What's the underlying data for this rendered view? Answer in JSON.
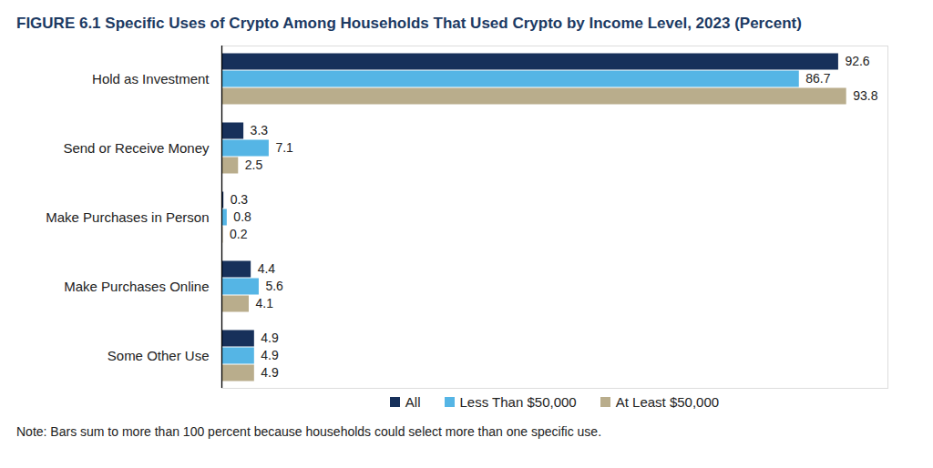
{
  "chart_data": {
    "type": "bar",
    "title": "FIGURE 6.1 Specific Uses of Crypto Among Households That Used Crypto by Income Level, 2023 (Percent)",
    "orientation": "horizontal",
    "categories": [
      "Hold as Investment",
      "Send or Receive Money",
      "Make Purchases in Person",
      "Make Purchases Online",
      "Some Other Use"
    ],
    "series": [
      {
        "name": "All",
        "color": "#17305a",
        "values": [
          92.6,
          3.3,
          0.3,
          4.4,
          4.9
        ]
      },
      {
        "name": "Less Than $50,000",
        "color": "#55b5e5",
        "values": [
          86.7,
          7.1,
          0.8,
          5.6,
          4.9
        ]
      },
      {
        "name": "At Least $50,000",
        "color": "#b9ad8c",
        "values": [
          93.8,
          2.5,
          0.2,
          4.1,
          4.9
        ]
      }
    ],
    "xlim": [
      0,
      100
    ],
    "data_labels": true,
    "tick_labels": "y",
    "legend": "bottom",
    "grid": false,
    "note": "Note: Bars sum to more than 100 percent because households could select more than one specific use."
  }
}
